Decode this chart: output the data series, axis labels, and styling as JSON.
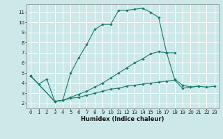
{
  "xlabel": "Humidex (Indice chaleur)",
  "bg_color": "#cce8e8",
  "line_color": "#1a7a6e",
  "xlim": [
    -0.5,
    23.5
  ],
  "ylim": [
    1.5,
    11.8
  ],
  "xticks": [
    0,
    1,
    2,
    3,
    4,
    5,
    6,
    7,
    8,
    9,
    10,
    11,
    12,
    13,
    14,
    15,
    16,
    17,
    18,
    19,
    20,
    21,
    22,
    23
  ],
  "yticks": [
    2,
    3,
    4,
    5,
    6,
    7,
    8,
    9,
    10,
    11
  ],
  "grid_color": "#ffffff",
  "s1x": [
    0,
    1,
    2,
    3,
    4,
    5,
    6,
    7,
    8,
    9,
    10,
    11,
    12,
    13,
    14,
    15,
    16,
    17,
    18,
    19,
    20,
    21
  ],
  "s1y": [
    4.7,
    3.9,
    4.4,
    2.2,
    2.3,
    5.0,
    6.5,
    7.8,
    9.3,
    9.8,
    9.8,
    11.2,
    11.2,
    11.3,
    11.4,
    11.0,
    10.5,
    7.0,
    4.4,
    3.8,
    3.6,
    3.7
  ],
  "s2x": [
    0,
    3,
    4,
    5,
    6,
    7,
    8,
    9,
    10,
    11,
    12,
    13,
    14,
    15,
    16,
    17,
    18
  ],
  "s2y": [
    4.7,
    2.2,
    2.3,
    2.6,
    2.9,
    3.2,
    3.6,
    4.0,
    4.5,
    5.0,
    5.5,
    6.0,
    6.4,
    6.9,
    7.1,
    7.0,
    7.0
  ],
  "s3x": [
    0,
    3,
    4,
    5,
    6,
    7,
    8,
    9,
    10,
    11,
    12,
    13,
    14,
    15,
    16,
    17,
    18,
    19,
    20,
    21,
    22,
    23
  ],
  "s3y": [
    4.7,
    2.2,
    2.3,
    2.5,
    2.6,
    2.8,
    3.0,
    3.2,
    3.4,
    3.5,
    3.7,
    3.8,
    3.9,
    4.0,
    4.1,
    4.2,
    4.3,
    3.5,
    3.6,
    3.7,
    3.6,
    3.7
  ],
  "tick_fontsize": 5.0,
  "xlabel_fontsize": 6.0
}
